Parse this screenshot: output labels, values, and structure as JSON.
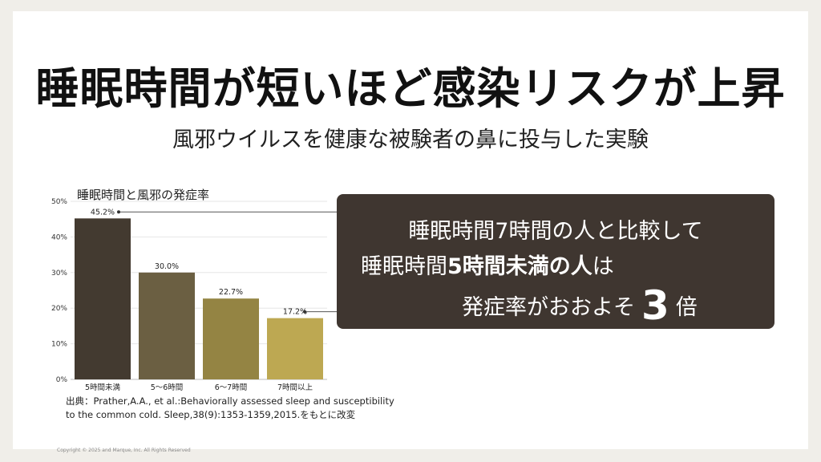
{
  "title": "睡眠時間が短いほど感染リスクが上昇",
  "subtitle": "風邪ウイルスを健康な被験者の鼻に投与した実験",
  "callout": {
    "line1": "睡眠時間7時間の人と比較して",
    "line2_prefix": "睡眠時間",
    "line2_bold": "5時間未満の人",
    "line2_suffix": "は",
    "line3_prefix": "発症率がおおよそ",
    "line3_big": "3",
    "line3_suffix": "倍"
  },
  "source": "出典：Prather,A.A., et al.:Behaviorally assessed sleep and susceptibility to the common cold. Sleep,38(9):1353-1359,2015.をもとに改変",
  "copyright": "Copyright © 2025 and Marque, Inc. All Rights Reserved",
  "chart_data": {
    "type": "bar",
    "title": "睡眠時間と風邪の発症率",
    "categories": [
      "5時間未満",
      "5〜6時間",
      "6〜7時間",
      "7時間以上"
    ],
    "values": [
      45.2,
      30.0,
      22.7,
      17.2
    ],
    "value_labels": [
      "45.2%",
      "30.0%",
      "22.7%",
      "17.2%"
    ],
    "ylim": [
      0,
      50
    ],
    "yticks": [
      0,
      10,
      20,
      30,
      40,
      50
    ],
    "ytick_labels": [
      "0%",
      "10%",
      "20%",
      "30%",
      "40%",
      "50%"
    ],
    "colors": [
      "#433a30",
      "#6b5f42",
      "#948443",
      "#bda852"
    ],
    "grid": true,
    "legend": "none"
  }
}
